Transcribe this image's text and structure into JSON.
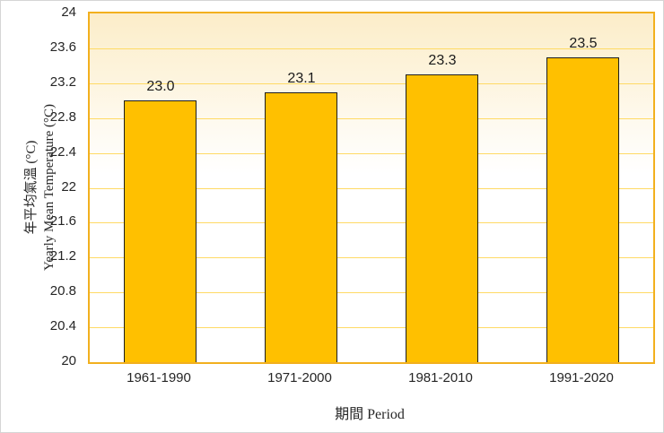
{
  "window": {
    "background": "#FFFFFF",
    "frame_border_color": "#D5D5D5"
  },
  "chart_data": {
    "type": "bar",
    "title": "",
    "categories": [
      "1961-1990",
      "1971-2000",
      "1981-2010",
      "1991-2020"
    ],
    "values": [
      23.0,
      23.1,
      23.3,
      23.5
    ],
    "data_labels": [
      "23.0",
      "23.1",
      "23.3",
      "23.5"
    ],
    "xlabel": "期間 Period",
    "ylabel_zh": "年平均氣溫 (°C)",
    "ylabel_en": "Yearly Mean Temperature (°C)",
    "ylim": [
      20,
      24
    ],
    "ytick_step": 0.4,
    "ytick_values": [
      24,
      23.6,
      23.2,
      22.8,
      22.4,
      22,
      21.6,
      21.2,
      20.8,
      20.4,
      20
    ],
    "ytick_labels": [
      "24",
      "23.6",
      "23.2",
      "22.8",
      "22.4",
      "22",
      "21.6",
      "21.2",
      "20.8",
      "20.4",
      "20"
    ],
    "grid": true,
    "legend": "none",
    "colors": {
      "bar_fill": "#FFC000",
      "bar_border": "#1E1E1E",
      "plot_border": "#F2B01E",
      "gridline": "#FFDA65",
      "plot_bg_top": "#FCEDC9",
      "plot_bg_bottom": "#FFFFFF",
      "data_label_text": "#1A1A1A",
      "tick_text": "#262626"
    }
  }
}
